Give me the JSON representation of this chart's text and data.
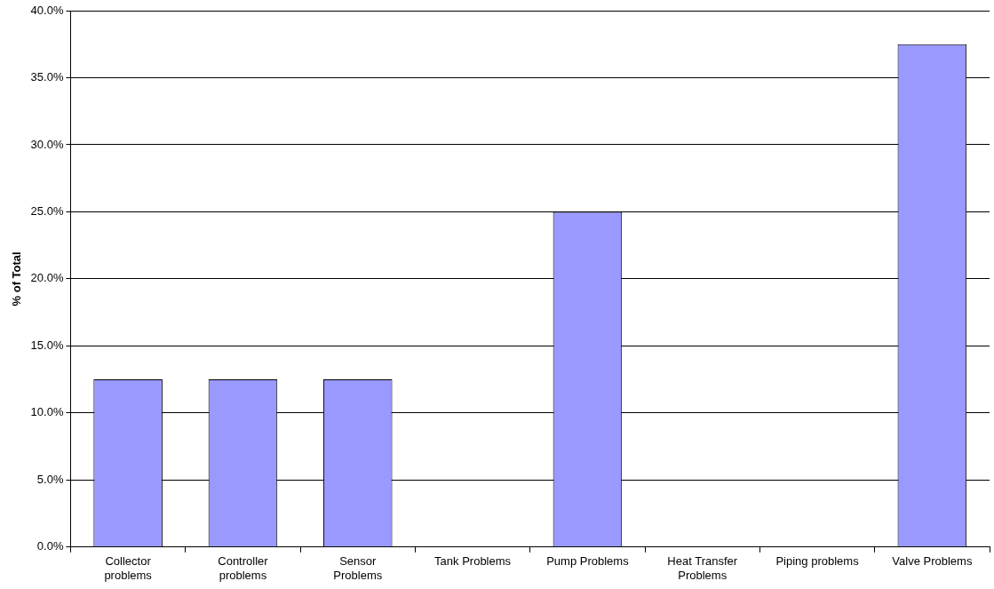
{
  "chart_data": {
    "type": "bar",
    "ylabel": "% of Total",
    "categories": [
      "Collector problems",
      "Controller problems",
      "Sensor Problems",
      "Tank Problems",
      "Pump Problems",
      "Heat Transfer Problems",
      "Piping problems",
      "Valve Problems"
    ],
    "values": [
      12.5,
      12.5,
      12.5,
      0,
      25,
      0,
      0,
      37.5
    ],
    "color": "#9999ff",
    "ylim": [
      0,
      40
    ],
    "yticks": [
      {
        "value": 0,
        "label": "0.0%"
      },
      {
        "value": 5,
        "label": "5.0%"
      },
      {
        "value": 10,
        "label": "10.0%"
      },
      {
        "value": 15,
        "label": "15.0%"
      },
      {
        "value": 20,
        "label": "20.0%"
      },
      {
        "value": 25,
        "label": "25.0%"
      },
      {
        "value": 30,
        "label": "30.0%"
      },
      {
        "value": 35,
        "label": "35.0%"
      },
      {
        "value": 40,
        "label": "40.0%"
      }
    ],
    "grid": "y",
    "legend": false
  }
}
